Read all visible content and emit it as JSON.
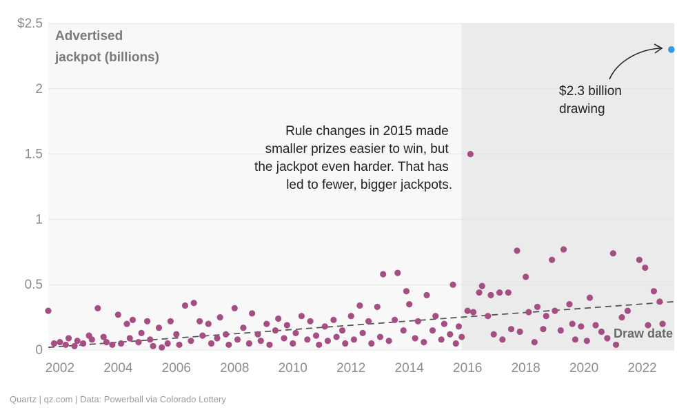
{
  "chart_data": {
    "type": "scatter",
    "ylabel_lines": [
      "Advertised",
      "jackpot (billions)"
    ],
    "xlabel": "Draw date",
    "xlim": [
      2001.6,
      2023.1
    ],
    "ylim": [
      0,
      2.5
    ],
    "x_ticks": [
      2002,
      2004,
      2006,
      2008,
      2010,
      2012,
      2014,
      2016,
      2018,
      2020,
      2022
    ],
    "x_tick_labels": [
      "2002",
      "2004",
      "2006",
      "2008",
      "2010",
      "2012",
      "2014",
      "2016",
      "2018",
      "2020",
      "2022"
    ],
    "y_ticks": [
      0,
      0.5,
      1,
      1.5,
      2,
      2.5
    ],
    "y_tick_labels": [
      "0",
      "0.5",
      "1",
      "1.5",
      "2",
      "$2.5"
    ],
    "grid": true,
    "shaded_region": {
      "x_start": 2015.8,
      "x_end": 2023.1
    },
    "trend_line": {
      "x": [
        2001.6,
        2023.1
      ],
      "y": [
        0.02,
        0.37
      ]
    },
    "annotation_rule": {
      "lines": [
        "Rule changes in 2015 made",
        "smaller prizes easier to win, but",
        "the jackpot even harder. That has",
        "led to fewer, bigger jackpots."
      ]
    },
    "annotation_record": {
      "lines": [
        "$2.3 billion",
        "drawing"
      ]
    },
    "source": "Quartz | qz.com | Data: Powerball via Colorado Lottery",
    "colors": {
      "points": "#a44e83",
      "highlight": "#3597e0",
      "shade": "#ebebeb",
      "plot_bg": "#f8f8f8",
      "grid": "#e4e4e4",
      "trend": "#555555"
    },
    "highlight_point": {
      "x": 2023.0,
      "y": 2.3
    },
    "points": [
      [
        2001.6,
        0.3
      ],
      [
        2001.8,
        0.05
      ],
      [
        2002.0,
        0.06
      ],
      [
        2002.2,
        0.04
      ],
      [
        2002.3,
        0.09
      ],
      [
        2002.5,
        0.03
      ],
      [
        2002.6,
        0.07
      ],
      [
        2002.8,
        0.05
      ],
      [
        2003.0,
        0.11
      ],
      [
        2003.1,
        0.08
      ],
      [
        2003.3,
        0.32
      ],
      [
        2003.5,
        0.1
      ],
      [
        2003.6,
        0.06
      ],
      [
        2003.8,
        0.04
      ],
      [
        2004.0,
        0.27
      ],
      [
        2004.1,
        0.05
      ],
      [
        2004.3,
        0.2
      ],
      [
        2004.4,
        0.09
      ],
      [
        2004.5,
        0.23
      ],
      [
        2004.7,
        0.06
      ],
      [
        2004.8,
        0.13
      ],
      [
        2005.0,
        0.22
      ],
      [
        2005.1,
        0.08
      ],
      [
        2005.2,
        0.03
      ],
      [
        2005.4,
        0.17
      ],
      [
        2005.5,
        0.02
      ],
      [
        2005.7,
        0.05
      ],
      [
        2005.8,
        0.22
      ],
      [
        2006.0,
        0.12
      ],
      [
        2006.1,
        0.04
      ],
      [
        2006.3,
        0.34
      ],
      [
        2006.5,
        0.07
      ],
      [
        2006.6,
        0.36
      ],
      [
        2006.8,
        0.22
      ],
      [
        2006.9,
        0.11
      ],
      [
        2007.1,
        0.2
      ],
      [
        2007.2,
        0.05
      ],
      [
        2007.4,
        0.09
      ],
      [
        2007.5,
        0.25
      ],
      [
        2007.7,
        0.12
      ],
      [
        2007.8,
        0.04
      ],
      [
        2008.0,
        0.32
      ],
      [
        2008.1,
        0.08
      ],
      [
        2008.3,
        0.17
      ],
      [
        2008.5,
        0.05
      ],
      [
        2008.6,
        0.28
      ],
      [
        2008.8,
        0.12
      ],
      [
        2008.9,
        0.07
      ],
      [
        2009.1,
        0.2
      ],
      [
        2009.2,
        0.04
      ],
      [
        2009.4,
        0.15
      ],
      [
        2009.5,
        0.24
      ],
      [
        2009.7,
        0.09
      ],
      [
        2009.8,
        0.19
      ],
      [
        2010.0,
        0.05
      ],
      [
        2010.1,
        0.13
      ],
      [
        2010.3,
        0.26
      ],
      [
        2010.5,
        0.08
      ],
      [
        2010.6,
        0.22
      ],
      [
        2010.8,
        0.11
      ],
      [
        2010.9,
        0.04
      ],
      [
        2011.1,
        0.18
      ],
      [
        2011.2,
        0.07
      ],
      [
        2011.4,
        0.23
      ],
      [
        2011.5,
        0.1
      ],
      [
        2011.7,
        0.15
      ],
      [
        2011.8,
        0.05
      ],
      [
        2012.0,
        0.26
      ],
      [
        2012.1,
        0.08
      ],
      [
        2012.3,
        0.34
      ],
      [
        2012.4,
        0.13
      ],
      [
        2012.6,
        0.22
      ],
      [
        2012.7,
        0.05
      ],
      [
        2012.9,
        0.33
      ],
      [
        2013.0,
        0.1
      ],
      [
        2013.1,
        0.58
      ],
      [
        2013.3,
        0.07
      ],
      [
        2013.5,
        0.23
      ],
      [
        2013.6,
        0.59
      ],
      [
        2013.8,
        0.15
      ],
      [
        2013.9,
        0.45
      ],
      [
        2014.0,
        0.35
      ],
      [
        2014.2,
        0.09
      ],
      [
        2014.3,
        0.22
      ],
      [
        2014.5,
        0.06
      ],
      [
        2014.6,
        0.42
      ],
      [
        2014.8,
        0.15
      ],
      [
        2014.9,
        0.26
      ],
      [
        2015.1,
        0.08
      ],
      [
        2015.2,
        0.2
      ],
      [
        2015.4,
        0.12
      ],
      [
        2015.5,
        0.5
      ],
      [
        2015.6,
        0.05
      ],
      [
        2015.7,
        0.18
      ],
      [
        2015.8,
        0.1
      ],
      [
        2016.0,
        0.3
      ],
      [
        2016.1,
        1.5
      ],
      [
        2016.2,
        0.29
      ],
      [
        2016.4,
        0.44
      ],
      [
        2016.5,
        0.49
      ],
      [
        2016.7,
        0.26
      ],
      [
        2016.8,
        0.42
      ],
      [
        2016.9,
        0.12
      ],
      [
        2017.1,
        0.44
      ],
      [
        2017.2,
        0.08
      ],
      [
        2017.4,
        0.44
      ],
      [
        2017.5,
        0.16
      ],
      [
        2017.7,
        0.76
      ],
      [
        2017.8,
        0.14
      ],
      [
        2018.0,
        0.56
      ],
      [
        2018.1,
        0.29
      ],
      [
        2018.3,
        0.06
      ],
      [
        2018.4,
        0.33
      ],
      [
        2018.6,
        0.16
      ],
      [
        2018.7,
        0.26
      ],
      [
        2018.9,
        0.69
      ],
      [
        2019.0,
        0.3
      ],
      [
        2019.2,
        0.15
      ],
      [
        2019.3,
        0.77
      ],
      [
        2019.5,
        0.35
      ],
      [
        2019.6,
        0.2
      ],
      [
        2019.7,
        0.08
      ],
      [
        2019.9,
        0.18
      ],
      [
        2020.1,
        0.07
      ],
      [
        2020.2,
        0.4
      ],
      [
        2020.4,
        0.19
      ],
      [
        2020.6,
        0.14
      ],
      [
        2020.8,
        0.09
      ],
      [
        2021.0,
        0.74
      ],
      [
        2021.1,
        0.04
      ],
      [
        2021.3,
        0.25
      ],
      [
        2021.5,
        0.3
      ],
      [
        2021.9,
        0.69
      ],
      [
        2022.1,
        0.63
      ],
      [
        2022.2,
        0.19
      ],
      [
        2022.4,
        0.45
      ],
      [
        2022.6,
        0.37
      ],
      [
        2022.7,
        0.2
      ]
    ]
  }
}
